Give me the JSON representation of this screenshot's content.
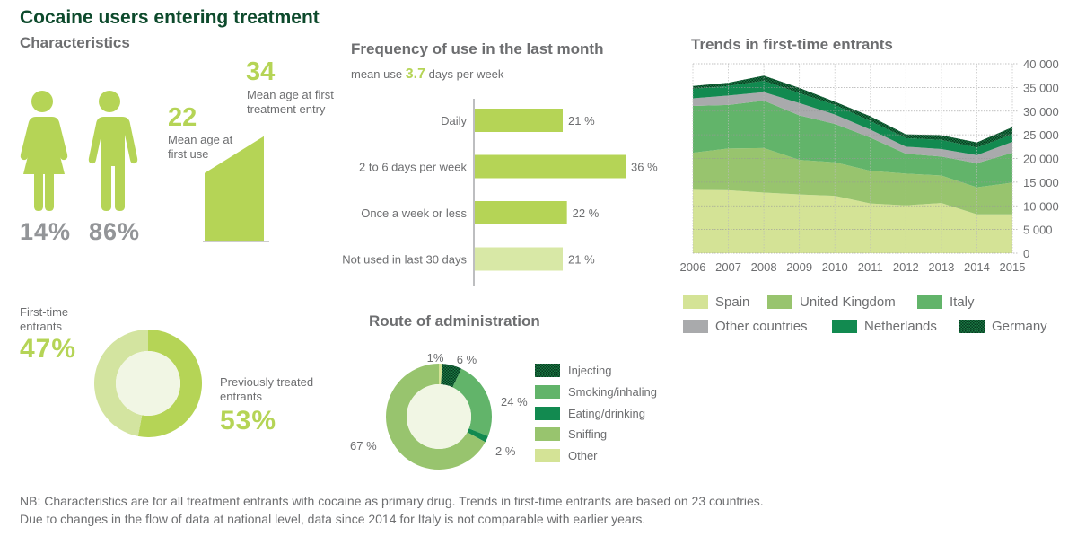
{
  "title": "Cocaine users entering treatment",
  "characteristics": {
    "heading": "Characteristics",
    "gender": [
      {
        "label": "female",
        "icon": "female-icon",
        "pct": "14%"
      },
      {
        "label": "male",
        "icon": "male-icon",
        "pct": "86%"
      }
    ],
    "age_first_use": {
      "value": "22",
      "label_line1": "Mean age at",
      "label_line2": "first use"
    },
    "age_first_treatment": {
      "value": "34",
      "label_line1": "Mean age at first",
      "label_line2": "treatment entry"
    }
  },
  "entrant_status": {
    "first_time": {
      "label_line1": "First-time",
      "label_line2": "entrants",
      "pct": "47%"
    },
    "previously_treated": {
      "label_line1": "Previously treated",
      "label_line2": "entrants",
      "pct": "53%"
    }
  },
  "notes": [
    "NB: Characteristics are for all treatment entrants with cocaine as primary drug. Trends in first-time entrants are based on 23 countries.",
    "Due to changes in the flow of data at national level, data since 2014 for Italy is not comparable with earlier years."
  ],
  "colors": {
    "brand_green": "#b5d456",
    "title_green": "#0d4a2c",
    "spain": "#d4e396",
    "uk": "#98c46e",
    "italy": "#62b46a",
    "other_countries": "#a9aaac",
    "netherlands": "#128a50",
    "germany": "#0b5e33"
  },
  "chart_data": [
    {
      "type": "bar",
      "title": "Frequency of use in the last month",
      "subtitle_prefix": "mean use",
      "subtitle_value": "3.7",
      "subtitle_suffix": "days per week",
      "categories": [
        "Daily",
        "2 to 6 days per week",
        "Once a week or less",
        "Not used in last 30 days"
      ],
      "values": [
        21,
        36,
        22,
        21
      ],
      "value_labels": [
        "21 %",
        "36 %",
        "22 %",
        "21 %"
      ],
      "unit": "%"
    },
    {
      "type": "area",
      "title": "Trends in first-time entrants",
      "stacked": true,
      "x": [
        "2006",
        "2007",
        "2008",
        "2009",
        "2010",
        "2011",
        "2012",
        "2013",
        "2014",
        "2015"
      ],
      "ylim": [
        0,
        40000
      ],
      "yticks": [
        "0",
        "5 000",
        "10 000",
        "15 000",
        "20 000",
        "25 000",
        "30 000",
        "35 000",
        "40 000"
      ],
      "ytick_values": [
        0,
        5000,
        10000,
        15000,
        20000,
        25000,
        30000,
        35000,
        40000
      ],
      "grid": true,
      "legend_position": "bottom",
      "series": [
        {
          "name": "Spain",
          "values": [
            13400,
            13300,
            12800,
            12400,
            12100,
            10500,
            10100,
            10600,
            8200,
            8200
          ]
        },
        {
          "name": "United Kingdom",
          "values": [
            7800,
            8800,
            9400,
            7300,
            7100,
            6900,
            6700,
            5800,
            5700,
            6700
          ]
        },
        {
          "name": "Italy",
          "values": [
            9900,
            9200,
            10000,
            9400,
            8100,
            7000,
            4200,
            4000,
            5100,
            6300
          ]
        },
        {
          "name": "Other countries",
          "values": [
            1600,
            2000,
            1800,
            2600,
            2000,
            1700,
            1500,
            1600,
            1700,
            2300
          ]
        },
        {
          "name": "Netherlands",
          "values": [
            2000,
            2000,
            2400,
            2100,
            2000,
            1800,
            1800,
            1900,
            1600,
            1600
          ]
        },
        {
          "name": "Germany",
          "values": [
            600,
            700,
            1100,
            1100,
            700,
            1000,
            800,
            1000,
            1100,
            1500
          ]
        }
      ]
    },
    {
      "type": "pie",
      "title": "First-time vs previously treated entrants",
      "categories": [
        "Previously treated entrants",
        "First-time entrants"
      ],
      "values": [
        53,
        47
      ],
      "donut": true
    },
    {
      "type": "pie",
      "title": "Route of administration",
      "donut": true,
      "categories": [
        "Other",
        "Injecting",
        "Smoking/inhaling",
        "Eating/drinking",
        "Sniffing"
      ],
      "values": [
        1,
        6,
        24,
        2,
        67
      ],
      "value_labels": [
        "1%",
        "6 %",
        "24 %",
        "2 %",
        "67 %"
      ],
      "legend": [
        "Injecting",
        "Smoking/inhaling",
        "Eating/drinking",
        "Sniffing",
        "Other"
      ],
      "legend_position": "right"
    }
  ]
}
